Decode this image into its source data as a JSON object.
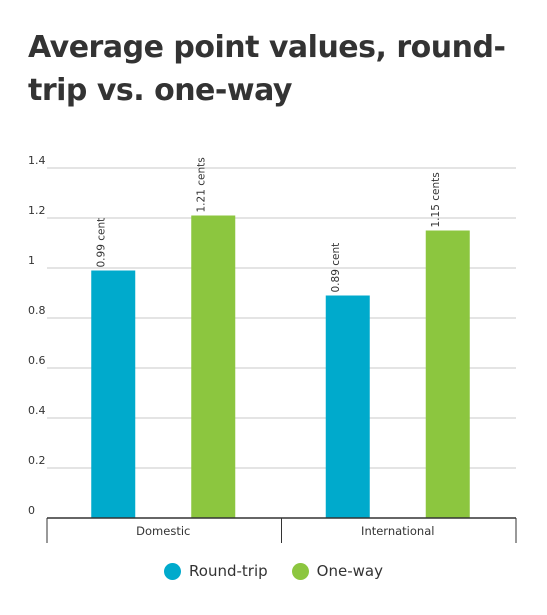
{
  "colors": {
    "round_trip": "#00aacc",
    "one_way": "#8cc63f",
    "grid": "#c8c8c8",
    "axis": "#333333"
  },
  "chart_data": {
    "type": "bar",
    "title": "Average point values, round-trip vs. one-way",
    "xlabel": "",
    "ylabel": "",
    "categories": [
      "Domestic",
      "International"
    ],
    "series": [
      {
        "name": "Round-trip",
        "values": [
          0.99,
          0.89
        ],
        "labels": [
          "0.99 cent",
          "0.89 cent"
        ]
      },
      {
        "name": "One-way",
        "values": [
          1.21,
          1.15
        ],
        "labels": [
          "1.21 cents",
          "1.15 cents"
        ]
      }
    ],
    "yticks": [
      "0",
      "0.2",
      "0.4",
      "0.6",
      "0.8",
      "1",
      "1.2",
      "1.4"
    ],
    "ylim": [
      0,
      1.4
    ],
    "grid": true,
    "legend": "bottom-center"
  }
}
